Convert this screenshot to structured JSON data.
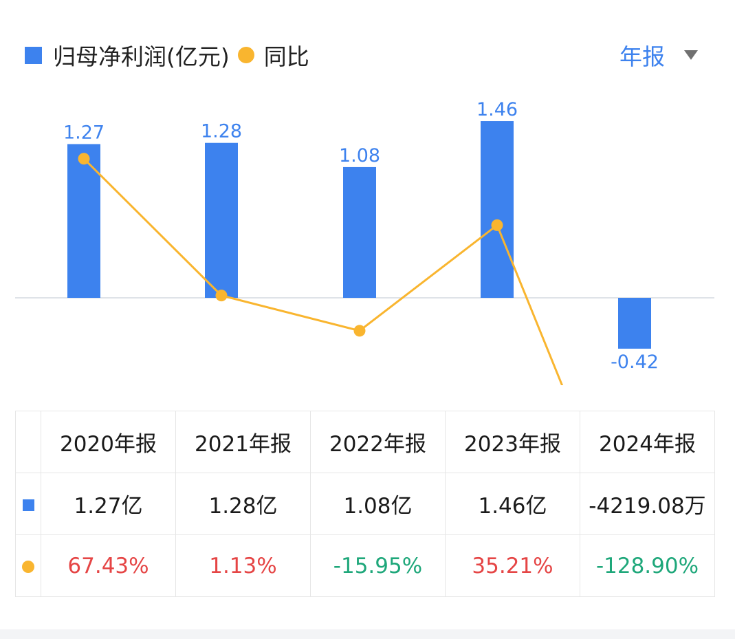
{
  "legend": {
    "bar_label": "归母净利润(亿元)",
    "line_label": "同比"
  },
  "period_selector": {
    "label": "年报"
  },
  "table": {
    "headers": [
      "2020年报",
      "2021年报",
      "2022年报",
      "2023年报",
      "2024年报"
    ],
    "profit_row": [
      "1.27亿",
      "1.28亿",
      "1.08亿",
      "1.46亿",
      "-4219.08万"
    ],
    "yoy_row": [
      "67.43%",
      "1.13%",
      "-15.95%",
      "35.21%",
      "-128.90%"
    ]
  },
  "colors": {
    "bar": "#3d82ee",
    "line": "#f9b52f",
    "positive": "#e54545",
    "negative": "#1ea77a"
  },
  "chart_data": {
    "type": "bar+line",
    "categories": [
      "2020年报",
      "2021年报",
      "2022年报",
      "2023年报",
      "2024年报"
    ],
    "series": [
      {
        "name": "归母净利润(亿元)",
        "type": "bar",
        "values": [
          1.27,
          1.28,
          1.08,
          1.46,
          -0.42
        ],
        "labels": [
          "1.27",
          "1.28",
          "1.08",
          "1.46",
          "-0.42"
        ]
      },
      {
        "name": "同比",
        "type": "line",
        "values": [
          67.43,
          1.13,
          -15.95,
          35.21,
          -128.9
        ]
      }
    ],
    "legend_position": "top-left",
    "grid": false
  }
}
